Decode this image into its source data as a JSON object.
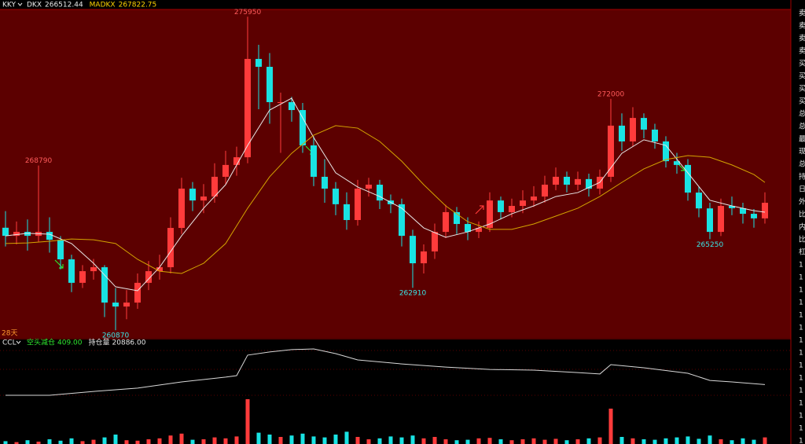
{
  "header": {
    "symbol": "KKY"
  },
  "side_labels": [
    "卖",
    "卖",
    "卖",
    "卖",
    "买",
    "买",
    "买",
    "买",
    "总",
    "总",
    "最",
    "现",
    "总",
    "持",
    "日",
    "外",
    "比",
    "内",
    "比",
    "杠",
    "1",
    "1",
    "1",
    "1",
    "1",
    "1",
    "1",
    "1",
    "1",
    "1",
    "1",
    "1",
    "1",
    "1",
    "1"
  ],
  "chart_data": [
    {
      "type": "candlestick",
      "period_label": "28天",
      "up_color": "#ff3b3b",
      "down_color": "#19e3e3",
      "ylim": [
        260500,
        276300
      ],
      "candles": [
        [
          265800,
          266600,
          264900,
          265410
        ],
        [
          265410,
          266100,
          265000,
          265600
        ],
        [
          265600,
          266200,
          264700,
          265410
        ],
        [
          265410,
          268790,
          265100,
          265600
        ],
        [
          265600,
          266300,
          264600,
          265220
        ],
        [
          265220,
          265400,
          263800,
          264280
        ],
        [
          264280,
          264500,
          262700,
          263150
        ],
        [
          263150,
          264000,
          262900,
          263710
        ],
        [
          263710,
          264300,
          263300,
          263900
        ],
        [
          263900,
          264000,
          261500,
          262200
        ],
        [
          262200,
          262900,
          260870,
          262010
        ],
        [
          262010,
          262800,
          261400,
          262200
        ],
        [
          262200,
          263600,
          261900,
          263150
        ],
        [
          263150,
          264200,
          262800,
          263710
        ],
        [
          263710,
          264500,
          263300,
          263900
        ],
        [
          263900,
          266300,
          263600,
          265790
        ],
        [
          265790,
          268200,
          265500,
          267680
        ],
        [
          267680,
          268000,
          266600,
          267110
        ],
        [
          267110,
          267900,
          266500,
          267300
        ],
        [
          267300,
          268900,
          267000,
          268250
        ],
        [
          268250,
          269500,
          267900,
          268820
        ],
        [
          268820,
          269700,
          268300,
          269190
        ],
        [
          269190,
          275950,
          268900,
          273920
        ],
        [
          273920,
          274600,
          271500,
          273540
        ],
        [
          273540,
          274200,
          270800,
          271840
        ],
        [
          271840,
          272300,
          269400,
          271840
        ],
        [
          271840,
          272100,
          270900,
          271460
        ],
        [
          271460,
          271800,
          269400,
          269760
        ],
        [
          269760,
          270200,
          267800,
          268250
        ],
        [
          268250,
          269100,
          267000,
          267680
        ],
        [
          267680,
          268000,
          266400,
          266930
        ],
        [
          266930,
          267500,
          265700,
          266170
        ],
        [
          266170,
          268100,
          265900,
          267680
        ],
        [
          267680,
          268200,
          267300,
          267870
        ],
        [
          267870,
          268100,
          266700,
          267110
        ],
        [
          267110,
          267400,
          266500,
          266930
        ],
        [
          266930,
          267200,
          264900,
          265410
        ],
        [
          265410,
          265700,
          262910,
          264090
        ],
        [
          264090,
          265000,
          263600,
          264660
        ],
        [
          264660,
          266000,
          264300,
          265600
        ],
        [
          265600,
          266900,
          265300,
          266550
        ],
        [
          266550,
          266800,
          265500,
          265980
        ],
        [
          265980,
          266300,
          265200,
          265600
        ],
        [
          265600,
          266100,
          265300,
          265790
        ],
        [
          265790,
          267500,
          265600,
          267110
        ],
        [
          267110,
          267300,
          266200,
          266550
        ],
        [
          266550,
          267200,
          266300,
          266850
        ],
        [
          266850,
          267600,
          266500,
          267110
        ],
        [
          267110,
          267800,
          266800,
          267300
        ],
        [
          267300,
          268300,
          267000,
          267870
        ],
        [
          267870,
          268700,
          267600,
          268250
        ],
        [
          268250,
          268500,
          267500,
          267870
        ],
        [
          267870,
          268500,
          267600,
          268140
        ],
        [
          268140,
          268400,
          267300,
          267680
        ],
        [
          267680,
          268600,
          267400,
          268250
        ],
        [
          268250,
          272000,
          268000,
          270710
        ],
        [
          270710,
          271300,
          269500,
          269950
        ],
        [
          269950,
          271600,
          269700,
          271080
        ],
        [
          271080,
          271300,
          270100,
          270520
        ],
        [
          270520,
          270800,
          269600,
          269950
        ],
        [
          269950,
          270200,
          268700,
          269000
        ],
        [
          269000,
          269400,
          268400,
          268820
        ],
        [
          268820,
          269100,
          267100,
          267490
        ],
        [
          267490,
          267800,
          266300,
          266730
        ],
        [
          266730,
          267000,
          265250,
          265600
        ],
        [
          265600,
          267200,
          265400,
          266850
        ],
        [
          266850,
          267300,
          266400,
          266740
        ],
        [
          266740,
          267000,
          266000,
          266470
        ],
        [
          266470,
          266700,
          265800,
          266250
        ],
        [
          266250,
          267500,
          266000,
          267000
        ]
      ],
      "ma": [
        {
          "name": "DKX",
          "current": 266512.44,
          "color": "#e8e8e8",
          "x": [
            0,
            2,
            4,
            6,
            8,
            10,
            12,
            14,
            16,
            18,
            20,
            22,
            24,
            26,
            28,
            30,
            32,
            34,
            36,
            38,
            40,
            42,
            44,
            46,
            48,
            50,
            52,
            54,
            56,
            58,
            60,
            62,
            64,
            66,
            68,
            69
          ],
          "values": [
            265410,
            265530,
            265490,
            265040,
            264090,
            262960,
            262770,
            263900,
            265410,
            266740,
            267870,
            269760,
            271460,
            272030,
            270140,
            268440,
            267760,
            267300,
            266740,
            265790,
            265340,
            265600,
            265980,
            266470,
            266850,
            267300,
            267490,
            267980,
            269380,
            270030,
            269760,
            268440,
            267120,
            266850,
            266620,
            266550
          ]
        },
        {
          "name": "MADKX",
          "current": 267822.75,
          "color": "#d4a400",
          "x": [
            0,
            2,
            4,
            6,
            8,
            10,
            12,
            14,
            16,
            18,
            20,
            22,
            24,
            26,
            28,
            30,
            32,
            34,
            36,
            38,
            40,
            42,
            44,
            46,
            48,
            50,
            52,
            54,
            56,
            58,
            60,
            62,
            64,
            66,
            68,
            69
          ],
          "values": [
            265040,
            265070,
            265150,
            265260,
            265220,
            265040,
            264280,
            263710,
            263600,
            264090,
            265040,
            266740,
            268250,
            269380,
            270250,
            270710,
            270590,
            269950,
            269000,
            267870,
            266850,
            266090,
            265720,
            265720,
            265980,
            266360,
            266740,
            267300,
            267980,
            268630,
            269080,
            269270,
            269190,
            268820,
            268360,
            267980
          ]
        }
      ],
      "annotations": [
        275950,
        268790,
        260870,
        262910,
        272000,
        265250
      ]
    },
    {
      "type": "line",
      "name": "CCL",
      "indicators": [
        {
          "label": "空头减仓",
          "value": {
            "value": 409,
            "label": "409.00"
          },
          "color": "#2ee62e"
        },
        {
          "label": "持仓量",
          "value": {
            "value": 20886,
            "label": "20886.00"
          },
          "color": "#e8e8e8"
        }
      ],
      "ylim": [
        20000,
        23000
      ],
      "color": "#d8d8d8",
      "x": [
        0,
        4,
        8,
        12,
        16,
        20,
        21,
        22,
        24,
        26,
        28,
        30,
        32,
        36,
        40,
        44,
        48,
        52,
        54,
        55,
        58,
        62,
        64,
        66,
        69
      ],
      "values": [
        20300,
        20300,
        20510,
        20690,
        21030,
        21290,
        21370,
        22490,
        22660,
        22790,
        22830,
        22570,
        22230,
        22010,
        21840,
        21710,
        21670,
        21540,
        21460,
        21970,
        21800,
        21500,
        21110,
        21030,
        20886
      ]
    },
    {
      "type": "bar",
      "ylim": [
        0,
        100
      ],
      "values": [
        6,
        4,
        8,
        5,
        10,
        7,
        12,
        6,
        9,
        14,
        20,
        8,
        7,
        10,
        12,
        18,
        22,
        9,
        10,
        14,
        12,
        16,
        95,
        24,
        20,
        15,
        18,
        22,
        16,
        14,
        20,
        26,
        15,
        10,
        12,
        16,
        14,
        18,
        12,
        15,
        10,
        8,
        9,
        12,
        13,
        10,
        8,
        10,
        12,
        9,
        11,
        8,
        10,
        12,
        14,
        75,
        15,
        12,
        10,
        9,
        12,
        14,
        16,
        11,
        18,
        10,
        8,
        12,
        9,
        14
      ]
    }
  ]
}
